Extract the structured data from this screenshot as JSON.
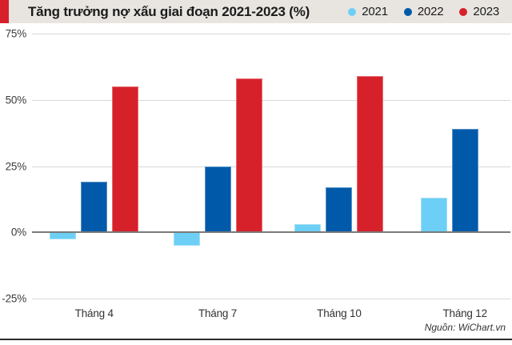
{
  "header": {
    "title": "Tăng trưởng nợ xấu giai đoạn 2021-2023 (%)",
    "accent_color": "#d7212a",
    "background_color": "#e8e5e1"
  },
  "legend": [
    {
      "label": "2021",
      "color": "#6dcff5"
    },
    {
      "label": "2022",
      "color": "#005aa9"
    },
    {
      "label": "2023",
      "color": "#d7212a"
    }
  ],
  "chart_data": {
    "type": "bar",
    "title": "Tăng trưởng nợ xấu giai đoạn 2021-2023 (%)",
    "categories": [
      "Tháng 4",
      "Tháng 7",
      "Tháng 10",
      "Tháng 12"
    ],
    "series": [
      {
        "name": "2021",
        "color": "#6dcff5",
        "values": [
          -2.5,
          -5,
          3,
          13
        ]
      },
      {
        "name": "2022",
        "color": "#005aa9",
        "values": [
          19,
          25,
          17,
          39
        ]
      },
      {
        "name": "2023",
        "color": "#d7212a",
        "values": [
          55,
          58,
          59,
          null
        ]
      }
    ],
    "ylim": [
      -25,
      75
    ],
    "yticks": [
      75,
      50,
      25,
      0,
      -25
    ],
    "ytick_labels": [
      "75%",
      "50%",
      "25%",
      "0%",
      "-25%"
    ],
    "unit": "%",
    "grid": true,
    "legend_position": "top-right"
  },
  "source": "Nguồn: WiChart.vn",
  "colors": {
    "gridline": "#d8d8d8",
    "zero_line": "#7a7a7a",
    "bottom_rule": "#2b2b2b"
  }
}
